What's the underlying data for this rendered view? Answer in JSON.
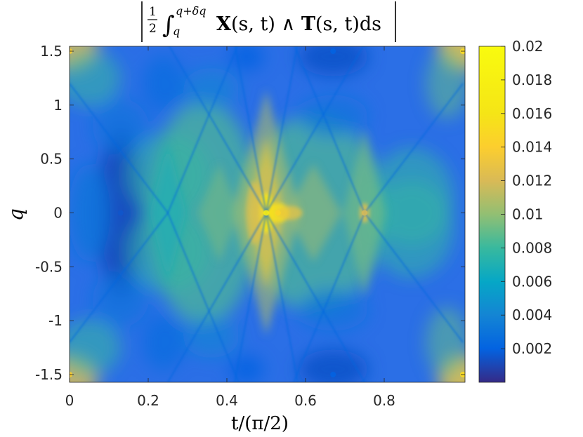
{
  "chart_data": {
    "type": "heatmap",
    "title": {
      "frac_num": "1",
      "frac_den": "2",
      "integral": "∫",
      "lower": "q",
      "upper": "q+δq",
      "X": "X",
      "args1": "(s, t) ∧ ",
      "T": "T",
      "args2": "(s, t)ds"
    },
    "xlabel": "t/(π/2)",
    "ylabel": "q",
    "x_ticks": [
      0,
      0.2,
      0.4,
      0.6,
      0.8
    ],
    "x_tick_labels": [
      "0",
      "0.2",
      "0.4",
      "0.6",
      "0.8"
    ],
    "xlim": [
      0,
      1
    ],
    "y_ticks": [
      1.5,
      1,
      0.5,
      0,
      -0.5,
      -1,
      -1.5
    ],
    "y_tick_labels": [
      "1.5",
      "1",
      "0.5",
      "0",
      "-0.5",
      "-1",
      "-1.5"
    ],
    "ylim": [
      -1.57,
      1.57
    ],
    "colorbar": {
      "range": [
        0,
        0.02
      ],
      "ticks": [
        0.02,
        0.018,
        0.016,
        0.014,
        0.012,
        0.01,
        0.008,
        0.006,
        0.004,
        0.002
      ],
      "tick_labels": [
        "0.02",
        "0.018",
        "0.016",
        "0.014",
        "0.012",
        "0.01",
        "0.008",
        "0.006",
        "0.004",
        "0.002"
      ],
      "colormap": "parula"
    },
    "features": [
      {
        "t": 0.5,
        "q": 0,
        "value": 0.0175
      },
      {
        "t": 0.53,
        "q": 0,
        "value": 0.0145
      },
      {
        "t": 0.75,
        "q": 0,
        "value": 0.012
      },
      {
        "t": 0.0,
        "q": 1.5,
        "value": 0.014
      },
      {
        "t": 0.0,
        "q": -1.5,
        "value": 0.014
      },
      {
        "t": 1.0,
        "q": 1.5,
        "value": 0.015
      },
      {
        "t": 1.0,
        "q": -1.5,
        "value": 0.015
      },
      {
        "t": 0.13,
        "q": 0,
        "value": 0.0015
      },
      {
        "t": 0.67,
        "q": 1.5,
        "value": 0.002
      },
      {
        "t": 0.67,
        "q": -1.5,
        "value": 0.002
      }
    ]
  }
}
